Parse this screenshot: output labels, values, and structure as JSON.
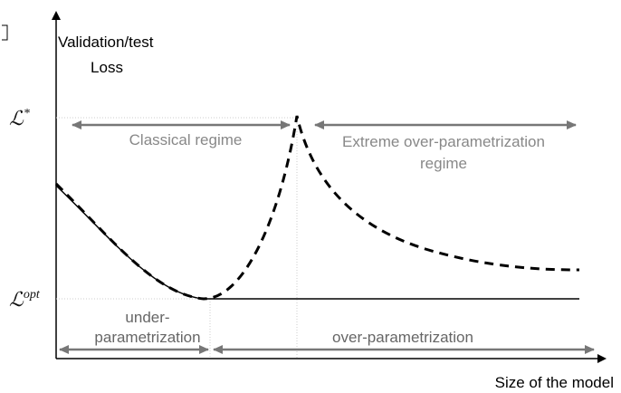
{
  "axes": {
    "y_label": [
      "Validation/test",
      "Loss"
    ],
    "x_label": "Size of the model"
  },
  "levels": {
    "upper": {
      "symbol": "ℒ",
      "superscript": "*"
    },
    "lower": {
      "symbol": "ℒ",
      "superscript": "opt"
    }
  },
  "regions": {
    "classical": [
      "Classical regime"
    ],
    "extreme": [
      "Extreme over-parametrization",
      "regime"
    ],
    "under": [
      "under-",
      "parametrization"
    ],
    "over": [
      "over-parametrization"
    ]
  }
}
